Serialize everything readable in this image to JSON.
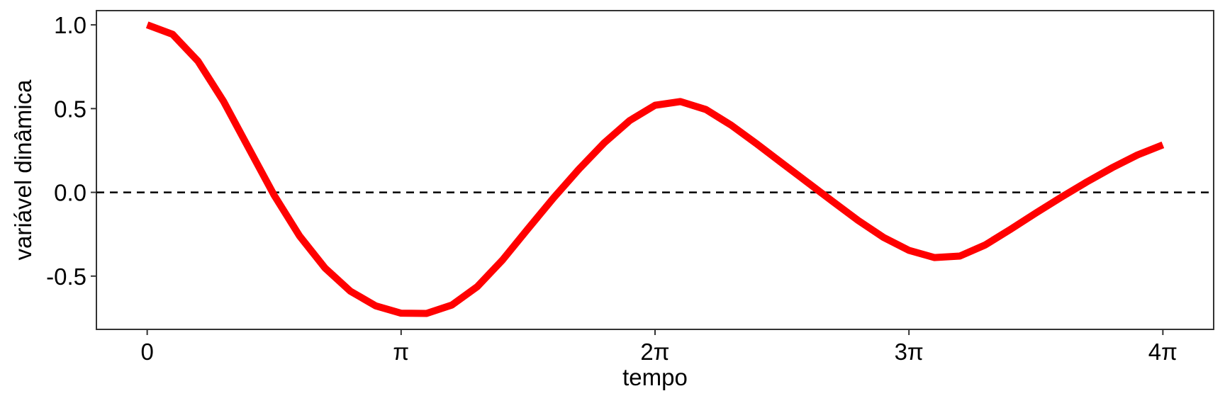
{
  "chart_data": {
    "type": "line",
    "title": "",
    "xlabel": "tempo",
    "ylabel": "variável dinâmica",
    "xlim": [
      -0.6283,
      13.1947
    ],
    "ylim": [
      -0.818,
      1.085
    ],
    "grid": false,
    "legend": "none",
    "x_ticks": [
      {
        "value": 0,
        "label": "0"
      },
      {
        "value": 3.14159,
        "label": "π"
      },
      {
        "value": 6.28319,
        "label": "2π"
      },
      {
        "value": 9.42478,
        "label": "3π"
      },
      {
        "value": 12.56637,
        "label": "4π"
      }
    ],
    "y_ticks": [
      {
        "value": 1.0,
        "label": "1.0"
      },
      {
        "value": 0.5,
        "label": "0.5"
      },
      {
        "value": 0.0,
        "label": "0.0"
      },
      {
        "value": -0.5,
        "label": "-0.5"
      }
    ],
    "reference_lines": [
      {
        "axis": "y",
        "value": 0,
        "style": "dashed",
        "color": "#000000"
      }
    ],
    "series": [
      {
        "color": "#ff0000",
        "x": [
          0,
          0.3142,
          0.6283,
          0.9425,
          1.2566,
          1.5708,
          1.885,
          2.1991,
          2.5133,
          2.8274,
          3.1416,
          3.4558,
          3.7699,
          4.0841,
          4.3982,
          4.7124,
          5.0265,
          5.3407,
          5.6549,
          5.969,
          6.2832,
          6.5973,
          6.9115,
          7.2257,
          7.5398,
          7.854,
          8.1681,
          8.4823,
          8.7965,
          9.1106,
          9.4248,
          9.7389,
          10.0531,
          10.3673,
          10.6814,
          10.9956,
          11.3097,
          11.6239,
          11.9381,
          12.2522,
          12.5664
        ],
        "y": [
          1.0,
          0.9434,
          0.7835,
          0.5451,
          0.2636,
          -0.0173,
          -0.2604,
          -0.4513,
          -0.5897,
          -0.6778,
          -0.7215,
          -0.7227,
          -0.6726,
          -0.5629,
          -0.4026,
          -0.2168,
          -0.034,
          0.1379,
          0.2958,
          0.4284,
          0.5199,
          0.5421,
          0.4948,
          0.4009,
          0.2901,
          0.1748,
          0.0602,
          -0.0545,
          -0.1678,
          -0.2691,
          -0.3464,
          -0.3892,
          -0.3804,
          -0.3142,
          -0.2205,
          -0.1232,
          -0.0289,
          0.0618,
          0.1469,
          0.2234,
          0.2835
        ]
      }
    ]
  }
}
